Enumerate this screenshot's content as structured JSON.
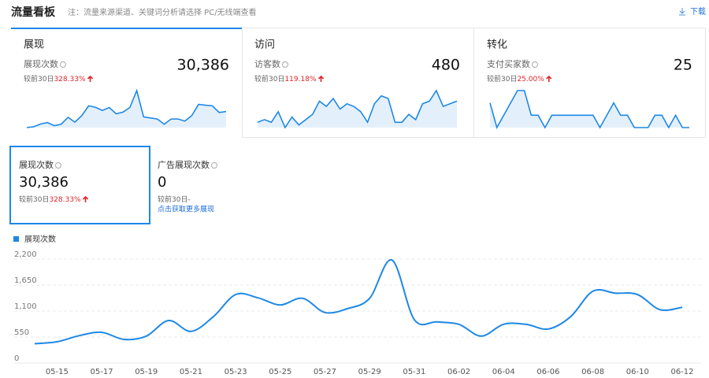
{
  "header": {
    "title": "流量看板",
    "note": "注：流量来源渠道、关键词分析请选择 PC/无线端查看",
    "download": "下载"
  },
  "cards": [
    {
      "title": "展现",
      "metric": "展现次数",
      "value": "30,386",
      "compare_label": "较前30日",
      "change": "328.33%",
      "spark": [
        310,
        350,
        480,
        550,
        400,
        470,
        800,
        570,
        880,
        1350,
        1280,
        1130,
        1270,
        970,
        1050,
        1270,
        2080,
        820,
        770,
        720,
        470,
        720,
        720,
        620,
        880,
        1420,
        1380,
        1350,
        1030,
        1080
      ]
    },
    {
      "title": "访问",
      "metric": "访客数",
      "value": "480",
      "compare_label": "较前30日",
      "change": "119.18%",
      "spark": [
        12,
        13,
        12,
        16,
        10,
        14,
        11,
        13,
        15,
        20,
        18,
        21,
        17,
        19,
        18,
        16,
        12,
        19,
        22,
        21,
        12,
        12,
        15,
        13,
        19,
        20,
        24,
        18,
        19,
        20
      ]
    },
    {
      "title": "转化",
      "metric": "支付买家数",
      "value": "25",
      "compare_label": "较前30日",
      "change": "25.00%",
      "spark": [
        2,
        0,
        1,
        2,
        3,
        3,
        1,
        1,
        0,
        1,
        1,
        1,
        1,
        1,
        1,
        1,
        0,
        1,
        2,
        1,
        1,
        0,
        0,
        0,
        1,
        1,
        0,
        1,
        0,
        0
      ]
    }
  ],
  "tiles": [
    {
      "metric": "展现次数",
      "value": "30,386",
      "compare_label": "较前30日",
      "change": "328.33%"
    },
    {
      "metric": "广告展现次数",
      "value": "0",
      "compare_label": "较前30日",
      "change": "-",
      "link": "点击获取更多展现"
    }
  ],
  "chart_data": {
    "type": "line",
    "categories": [
      null,
      "05-15",
      null,
      "05-17",
      null,
      "05-19",
      null,
      "05-21",
      null,
      "05-23",
      null,
      "05-25",
      null,
      "05-27",
      null,
      "05-29",
      null,
      "05-31",
      null,
      "06-02",
      null,
      "06-04",
      null,
      "06-06",
      null,
      "06-08",
      null,
      "06-10",
      null,
      "06-12"
    ],
    "series": [
      {
        "name": "展现次数",
        "color": "#1e88e5",
        "values": [
          310,
          350,
          480,
          550,
          400,
          470,
          800,
          570,
          880,
          1350,
          1280,
          1130,
          1270,
          970,
          1050,
          1270,
          2080,
          820,
          770,
          720,
          470,
          720,
          720,
          620,
          880,
          1420,
          1380,
          1350,
          1030,
          1080
        ]
      }
    ],
    "ylim": [
      0,
      2200
    ],
    "yticks": [
      0,
      550,
      {
        "value": 1100,
        "label": "1,100"
      },
      {
        "value": 1650,
        "label": "1,650"
      },
      {
        "value": 2200,
        "label": "2,200"
      }
    ],
    "grid": true
  }
}
